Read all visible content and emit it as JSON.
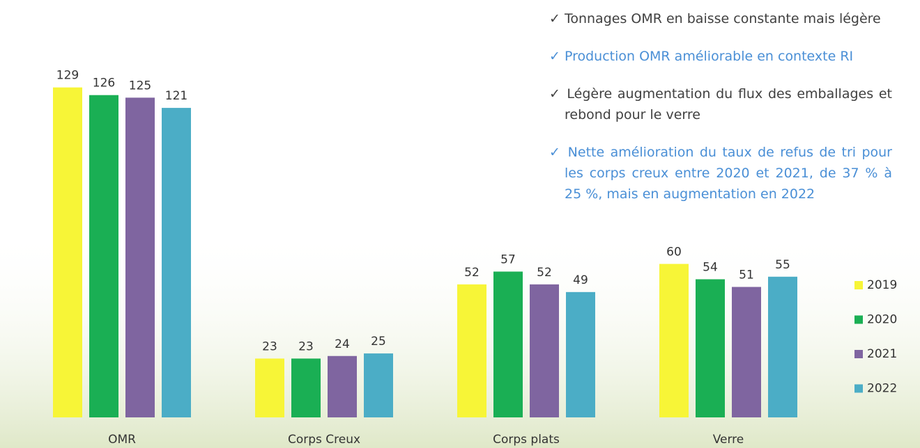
{
  "chart_data": {
    "type": "bar",
    "categories": [
      "OMR",
      "Corps Creux",
      "Corps plats",
      "Verre"
    ],
    "series": [
      {
        "name": "2019",
        "color": "#f7f537",
        "values": [
          129,
          23,
          52,
          60
        ]
      },
      {
        "name": "2020",
        "color": "#1aaf54",
        "values": [
          126,
          23,
          57,
          54
        ]
      },
      {
        "name": "2021",
        "color": "#7f65a0",
        "values": [
          125,
          24,
          52,
          51
        ]
      },
      {
        "name": "2022",
        "color": "#4badc6",
        "values": [
          121,
          25,
          49,
          55
        ]
      }
    ],
    "ylim": [
      0,
      130
    ],
    "legend": "right",
    "annotations": [
      {
        "text": "✓ Tonnages OMR en baisse constante mais légère",
        "color": "#404040"
      },
      {
        "text": "✓ Production OMR améliorable en contexte RI",
        "color": "#4a8fd6"
      },
      {
        "text": "✓ Légère augmentation du flux des emballages et rebond pour le verre",
        "color": "#404040"
      },
      {
        "text": "✓ Nette amélioration du taux de refus de tri pour les corps creux entre 2020 et 2021, de 37 % à 25 %, mais en augmentation en 2022",
        "color": "#4a8fd6"
      }
    ]
  }
}
